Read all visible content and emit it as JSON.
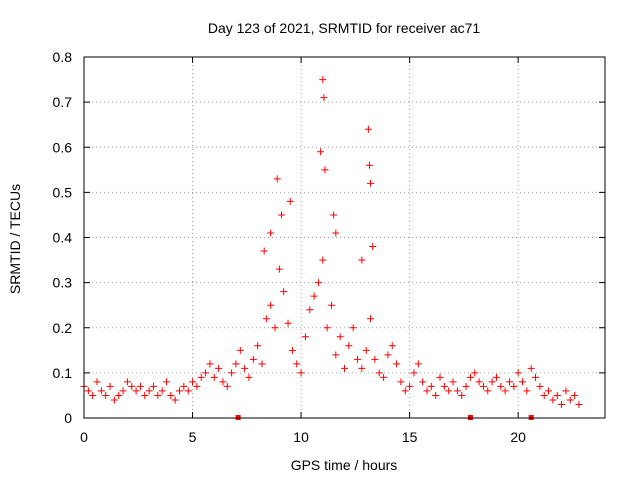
{
  "chart_data": {
    "type": "scatter",
    "title": "Day 123 of 2021, SRMTID for receiver ac71",
    "xlabel": "GPS time / hours",
    "ylabel": "SRMTID / TECUs",
    "xlim": [
      0,
      24
    ],
    "ylim": [
      0,
      0.8
    ],
    "x_ticks": [
      0,
      5,
      10,
      15,
      20
    ],
    "x_tick_labels": [
      "0",
      "5",
      "10",
      "15",
      "20"
    ],
    "y_ticks": [
      0,
      0.1,
      0.2,
      0.3,
      0.4,
      0.5,
      0.6,
      0.7,
      0.8
    ],
    "y_tick_labels": [
      "0",
      "0.1",
      "0.2",
      "0.3",
      "0.4",
      "0.5",
      "0.6",
      "0.7",
      "0.8"
    ],
    "grid": true,
    "marker": "+",
    "series": [
      {
        "name": "SRMTID",
        "color": "#ff0000",
        "x": [
          0.0,
          0.2,
          0.4,
          0.6,
          0.8,
          1.0,
          1.2,
          1.4,
          1.6,
          1.8,
          2.0,
          2.2,
          2.4,
          2.6,
          2.8,
          3.0,
          3.2,
          3.4,
          3.6,
          3.8,
          4.0,
          4.2,
          4.4,
          4.6,
          4.8,
          5.0,
          5.2,
          5.4,
          5.6,
          5.8,
          6.0,
          6.2,
          6.4,
          6.6,
          6.8,
          7.0,
          7.2,
          7.4,
          7.6,
          7.8,
          8.0,
          8.2,
          8.4,
          8.6,
          8.8,
          9.0,
          9.2,
          9.4,
          9.6,
          9.8,
          10.0,
          10.2,
          10.4,
          10.6,
          10.8,
          11.0,
          11.2,
          11.4,
          11.6,
          11.8,
          12.0,
          12.2,
          12.4,
          12.6,
          12.8,
          13.0,
          13.2,
          13.4,
          13.6,
          13.8,
          14.0,
          14.2,
          14.4,
          14.6,
          14.8,
          15.0,
          15.2,
          15.4,
          15.6,
          15.8,
          16.0,
          16.2,
          16.4,
          16.6,
          16.8,
          17.0,
          17.2,
          17.4,
          17.6,
          17.8,
          18.0,
          18.2,
          18.4,
          18.6,
          18.8,
          19.0,
          19.2,
          19.4,
          19.6,
          19.8,
          20.0,
          20.2,
          20.4,
          20.6,
          20.8,
          21.0,
          21.2,
          21.4,
          21.6,
          21.8,
          22.0,
          22.2,
          22.4,
          22.6,
          22.8,
          8.3,
          8.6,
          8.9,
          9.1,
          9.5,
          10.9,
          11.0,
          11.05,
          11.1,
          11.5,
          11.6,
          12.8,
          13.1,
          13.15,
          13.2,
          13.3
        ],
        "y": [
          0.07,
          0.06,
          0.05,
          0.08,
          0.06,
          0.05,
          0.07,
          0.04,
          0.05,
          0.06,
          0.08,
          0.07,
          0.06,
          0.07,
          0.05,
          0.06,
          0.07,
          0.05,
          0.06,
          0.08,
          0.05,
          0.04,
          0.06,
          0.07,
          0.06,
          0.08,
          0.07,
          0.09,
          0.1,
          0.12,
          0.09,
          0.11,
          0.08,
          0.07,
          0.1,
          0.12,
          0.15,
          0.11,
          0.09,
          0.13,
          0.16,
          0.12,
          0.22,
          0.25,
          0.2,
          0.33,
          0.28,
          0.21,
          0.15,
          0.12,
          0.1,
          0.18,
          0.24,
          0.27,
          0.3,
          0.35,
          0.2,
          0.25,
          0.14,
          0.18,
          0.11,
          0.16,
          0.2,
          0.13,
          0.11,
          0.15,
          0.22,
          0.13,
          0.1,
          0.09,
          0.14,
          0.16,
          0.12,
          0.08,
          0.06,
          0.07,
          0.1,
          0.12,
          0.08,
          0.06,
          0.07,
          0.05,
          0.09,
          0.07,
          0.06,
          0.08,
          0.06,
          0.05,
          0.07,
          0.09,
          0.1,
          0.08,
          0.07,
          0.06,
          0.08,
          0.09,
          0.07,
          0.06,
          0.08,
          0.07,
          0.1,
          0.08,
          0.06,
          0.11,
          0.09,
          0.07,
          0.05,
          0.06,
          0.04,
          0.05,
          0.03,
          0.06,
          0.04,
          0.05,
          0.03,
          0.37,
          0.41,
          0.53,
          0.45,
          0.48,
          0.59,
          0.75,
          0.71,
          0.55,
          0.45,
          0.41,
          0.35,
          0.64,
          0.56,
          0.52,
          0.38
        ]
      }
    ],
    "bottom_markers_x": [
      7.1,
      17.8,
      20.6
    ]
  }
}
